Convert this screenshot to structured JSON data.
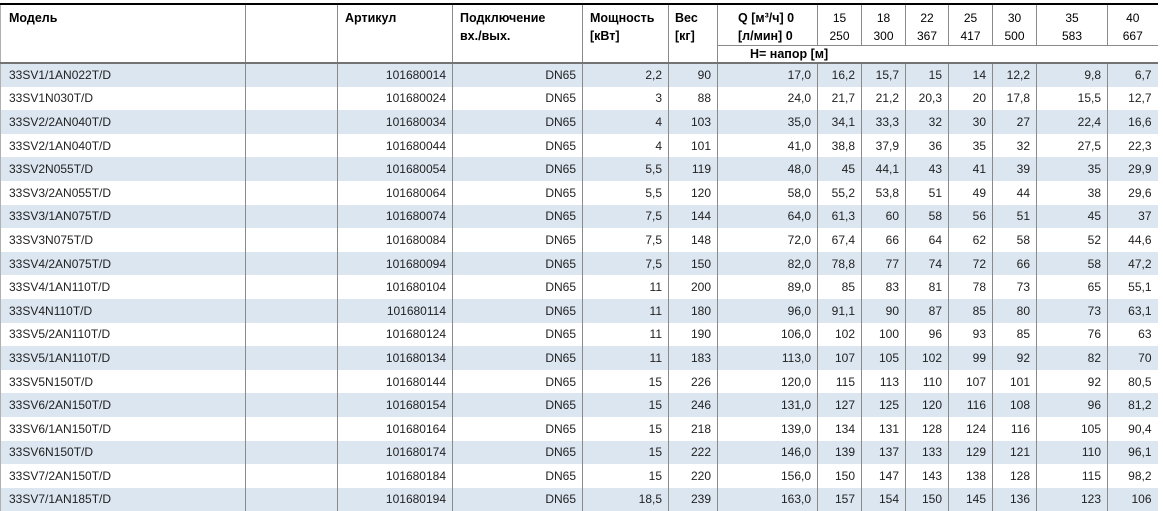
{
  "table": {
    "style": {
      "stripe_color": "#dce6f0",
      "grid_color": "#8a8a8a",
      "top_border_color": "#000000",
      "header_separator_color": "#737373"
    },
    "header": {
      "model": "Модель",
      "article": "Артикул",
      "connection": [
        "Подключение",
        "вх./вых."
      ],
      "power": [
        "Мощность",
        "[кВт]"
      ],
      "weight": [
        "Вес",
        "[кг]"
      ],
      "flow": [
        "Q [м³/ч] 0",
        "[л/мин] 0"
      ],
      "head_subheader": "Н= напор [м]"
    },
    "flow_columns": [
      {
        "m3h": "15",
        "lmin": "250"
      },
      {
        "m3h": "18",
        "lmin": "300"
      },
      {
        "m3h": "22",
        "lmin": "367"
      },
      {
        "m3h": "25",
        "lmin": "417"
      },
      {
        "m3h": "30",
        "lmin": "500"
      },
      {
        "m3h": "35",
        "lmin": "583"
      },
      {
        "m3h": "40",
        "lmin": "667"
      }
    ],
    "rows": [
      {
        "model": "33SV1/1AN022T/D",
        "article": "101680014",
        "connection": "DN65",
        "power": "2,2",
        "weight": "90",
        "heads": [
          "17,0",
          "16,2",
          "15,7",
          "15",
          "14",
          "12,2",
          "9,8",
          "6,7"
        ]
      },
      {
        "model": "33SV1N030T/D",
        "article": "101680024",
        "connection": "DN65",
        "power": "3",
        "weight": "88",
        "heads": [
          "24,0",
          "21,7",
          "21,2",
          "20,3",
          "20",
          "17,8",
          "15,5",
          "12,7"
        ]
      },
      {
        "model": "33SV2/2AN040T/D",
        "article": "101680034",
        "connection": "DN65",
        "power": "4",
        "weight": "103",
        "heads": [
          "35,0",
          "34,1",
          "33,3",
          "32",
          "30",
          "27",
          "22,4",
          "16,6"
        ]
      },
      {
        "model": "33SV2/1AN040T/D",
        "article": "101680044",
        "connection": "DN65",
        "power": "4",
        "weight": "101",
        "heads": [
          "41,0",
          "38,8",
          "37,9",
          "36",
          "35",
          "32",
          "27,5",
          "22,3"
        ]
      },
      {
        "model": "33SV2N055T/D",
        "article": "101680054",
        "connection": "DN65",
        "power": "5,5",
        "weight": "119",
        "heads": [
          "48,0",
          "45",
          "44,1",
          "43",
          "41",
          "39",
          "35",
          "29,9"
        ]
      },
      {
        "model": "33SV3/2AN055T/D",
        "article": "101680064",
        "connection": "DN65",
        "power": "5,5",
        "weight": "120",
        "heads": [
          "58,0",
          "55,2",
          "53,8",
          "51",
          "49",
          "44",
          "38",
          "29,6"
        ]
      },
      {
        "model": "33SV3/1AN075T/D",
        "article": "101680074",
        "connection": "DN65",
        "power": "7,5",
        "weight": "144",
        "heads": [
          "64,0",
          "61,3",
          "60",
          "58",
          "56",
          "51",
          "45",
          "37"
        ]
      },
      {
        "model": "33SV3N075T/D",
        "article": "101680084",
        "connection": "DN65",
        "power": "7,5",
        "weight": "148",
        "heads": [
          "72,0",
          "67,4",
          "66",
          "64",
          "62",
          "58",
          "52",
          "44,6"
        ]
      },
      {
        "model": "33SV4/2AN075T/D",
        "article": "101680094",
        "connection": "DN65",
        "power": "7,5",
        "weight": "150",
        "heads": [
          "82,0",
          "78,8",
          "77",
          "74",
          "72",
          "66",
          "58",
          "47,2"
        ]
      },
      {
        "model": "33SV4/1AN110T/D",
        "article": "101680104",
        "connection": "DN65",
        "power": "11",
        "weight": "200",
        "heads": [
          "89,0",
          "85",
          "83",
          "81",
          "78",
          "73",
          "65",
          "55,1"
        ]
      },
      {
        "model": "33SV4N110T/D",
        "article": "101680114",
        "connection": "DN65",
        "power": "11",
        "weight": "180",
        "heads": [
          "96,0",
          "91,1",
          "90",
          "87",
          "85",
          "80",
          "73",
          "63,1"
        ]
      },
      {
        "model": "33SV5/2AN110T/D",
        "article": "101680124",
        "connection": "DN65",
        "power": "11",
        "weight": "190",
        "heads": [
          "106,0",
          "102",
          "100",
          "96",
          "93",
          "85",
          "76",
          "63"
        ]
      },
      {
        "model": "33SV5/1AN110T/D",
        "article": "101680134",
        "connection": "DN65",
        "power": "11",
        "weight": "183",
        "heads": [
          "113,0",
          "107",
          "105",
          "102",
          "99",
          "92",
          "82",
          "70"
        ]
      },
      {
        "model": "33SV5N150T/D",
        "article": "101680144",
        "connection": "DN65",
        "power": "15",
        "weight": "226",
        "heads": [
          "120,0",
          "115",
          "113",
          "110",
          "107",
          "101",
          "92",
          "80,5"
        ]
      },
      {
        "model": "33SV6/2AN150T/D",
        "article": "101680154",
        "connection": "DN65",
        "power": "15",
        "weight": "246",
        "heads": [
          "131,0",
          "127",
          "125",
          "120",
          "116",
          "108",
          "96",
          "81,2"
        ]
      },
      {
        "model": "33SV6/1AN150T/D",
        "article": "101680164",
        "connection": "DN65",
        "power": "15",
        "weight": "218",
        "heads": [
          "139,0",
          "134",
          "131",
          "128",
          "124",
          "116",
          "105",
          "90,4"
        ]
      },
      {
        "model": "33SV6N150T/D",
        "article": "101680174",
        "connection": "DN65",
        "power": "15",
        "weight": "222",
        "heads": [
          "146,0",
          "139",
          "137",
          "133",
          "129",
          "121",
          "110",
          "96,1"
        ]
      },
      {
        "model": "33SV7/2AN150T/D",
        "article": "101680184",
        "connection": "DN65",
        "power": "15",
        "weight": "220",
        "heads": [
          "156,0",
          "150",
          "147",
          "143",
          "138",
          "128",
          "115",
          "98,2"
        ]
      },
      {
        "model": "33SV7/1AN185T/D",
        "article": "101680194",
        "connection": "DN65",
        "power": "18,5",
        "weight": "239",
        "heads": [
          "163,0",
          "157",
          "154",
          "150",
          "145",
          "136",
          "123",
          "106"
        ]
      }
    ]
  }
}
